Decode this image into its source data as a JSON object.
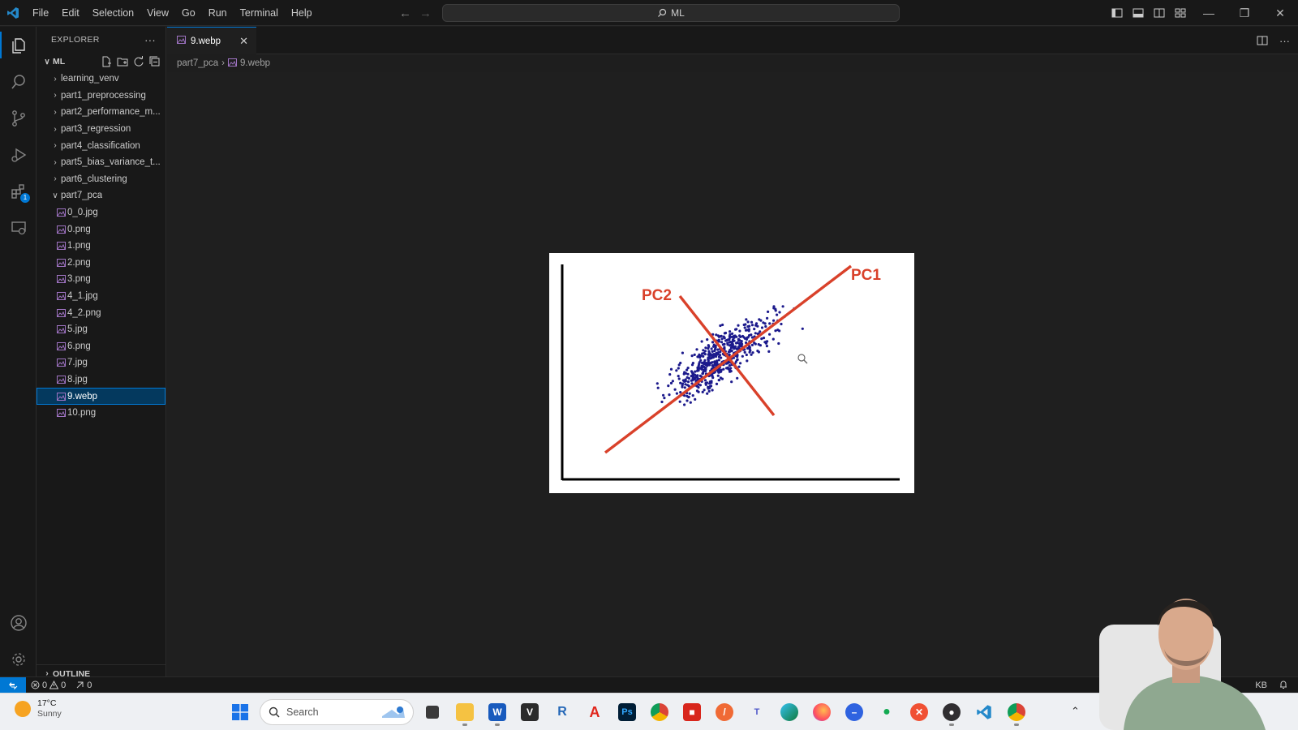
{
  "menu": [
    "File",
    "Edit",
    "Selection",
    "View",
    "Go",
    "Run",
    "Terminal",
    "Help"
  ],
  "command_center": {
    "label": "ML"
  },
  "sidebar": {
    "title": "EXPLORER",
    "workspace": "ML",
    "folders": [
      "learning_venv",
      "part1_preprocessing",
      "part2_performance_m...",
      "part3_regression",
      "part4_classification",
      "part5_bias_variance_t...",
      "part6_clustering"
    ],
    "open_folder": "part7_pca",
    "files": [
      "0_0.jpg",
      "0.png",
      "1.png",
      "2.png",
      "3.png",
      "4_1.jpg",
      "4_2.png",
      "5.jpg",
      "6.png",
      "7.jpg",
      "8.jpg",
      "9.webp",
      "10.png"
    ],
    "selected_file": "9.webp",
    "outline": "OUTLINE"
  },
  "activity_bar": {
    "extensions_badge": "1"
  },
  "tab": {
    "label": "9.webp"
  },
  "breadcrumb": {
    "folder": "part7_pca",
    "file": "9.webp"
  },
  "chart_data": {
    "type": "scatter",
    "labels": {
      "pc1": "PC1",
      "pc2": "PC2"
    },
    "colors": {
      "points": "#1c1a8c",
      "axes": "#000000",
      "lines": "#d9412a"
    }
  },
  "status": {
    "errors": "0",
    "warnings": "0",
    "ports": "0",
    "size": "KB"
  },
  "taskbar": {
    "weather_temp": "17°C",
    "weather_condition": "Sunny",
    "search_placeholder": "Search",
    "apps": [
      "file-explorer",
      "task-view",
      "files",
      "word",
      "vivaldi",
      "r",
      "acrobat-a",
      "photoshop",
      "chrome",
      "pdf-reader",
      "slash-app",
      "teams",
      "edge",
      "firefox",
      "minus-app",
      "mongodb",
      "git-app",
      "obs",
      "vscode",
      "chrome-dev"
    ]
  }
}
